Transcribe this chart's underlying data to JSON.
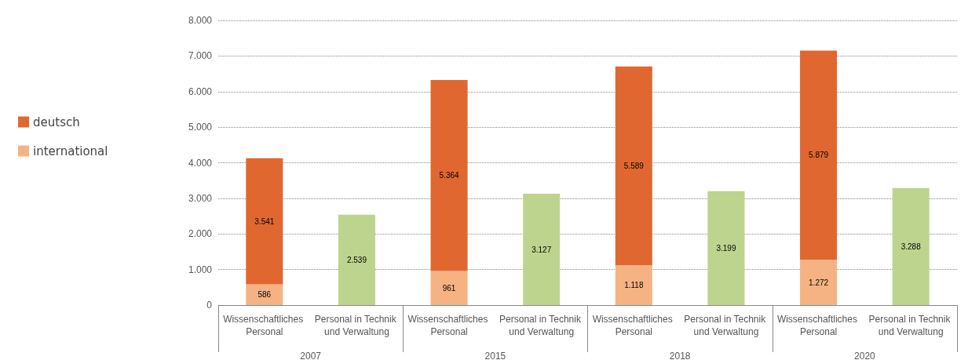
{
  "chart_data": {
    "type": "bar",
    "stacked": true,
    "categories": [
      "Wissenschaftliches Personal",
      "Personal in Technik und Verwaltung",
      "Wissenschaftliches Personal",
      "Personal in Technik und Verwaltung",
      "Wissenschaftliches Personal",
      "Personal in Technik und Verwaltung",
      "Wissenschaftliches Personal",
      "Personal in Technik und Verwaltung"
    ],
    "series": [
      {
        "name": "international",
        "color": "#f5b383",
        "values": [
          586,
          null,
          961,
          null,
          1118,
          null,
          1272,
          null
        ],
        "value_labels": [
          "586",
          null,
          "961",
          null,
          "1.118",
          null,
          "1.272",
          null
        ]
      },
      {
        "name": "deutsch",
        "color": "#e06830",
        "values": [
          3541,
          null,
          5364,
          null,
          5589,
          null,
          5879,
          null
        ],
        "value_labels": [
          "3.541",
          null,
          "5.364",
          null,
          "5.589",
          null,
          "5.879",
          null
        ]
      },
      {
        "color": "#bdd48f",
        "values": [
          null,
          2539,
          null,
          3127,
          null,
          3199,
          null,
          3288
        ],
        "value_labels": [
          null,
          "2.539",
          null,
          "3.127",
          null,
          "3.199",
          null,
          "3.288"
        ]
      }
    ],
    "ylim": [
      0,
      8000
    ],
    "yticks": [
      0,
      {
        "value": 1000,
        "label": "1.000"
      },
      {
        "value": 2000,
        "label": "2.000"
      },
      {
        "value": 3000,
        "label": "3.000"
      },
      {
        "value": 4000,
        "label": "4.000"
      },
      {
        "value": 5000,
        "label": "5.000"
      },
      {
        "value": 6000,
        "label": "6.000"
      },
      {
        "value": 7000,
        "label": "7.000"
      },
      {
        "value": 8000,
        "label": "8.000"
      }
    ],
    "annotations": [
      "2007",
      "2015",
      "2018",
      "2020"
    ],
    "grid": "y",
    "legend": "left"
  }
}
